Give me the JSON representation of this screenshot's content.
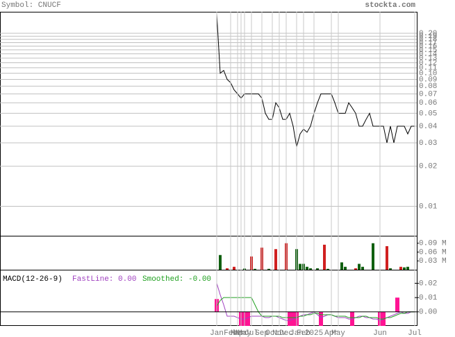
{
  "header": {
    "symbol": "Symbol: CNUCF",
    "site": "stockta.com"
  },
  "chart_data": [
    {
      "type": "line",
      "log_scale": true,
      "grid": true,
      "color": "#000000",
      "categories": [
        "Jan",
        null,
        null,
        null,
        "Feb",
        null,
        "Mar",
        "Apr",
        "May",
        null,
        "Jul",
        null,
        null,
        "Sep",
        null,
        null,
        "Oct",
        null,
        "Nov",
        null,
        "Dec",
        null,
        null,
        "Jan",
        null,
        "Feb",
        null,
        null,
        "2025",
        null,
        null,
        null,
        null,
        "Apr",
        null,
        "May",
        null,
        null,
        null,
        null,
        null,
        null,
        null,
        null,
        null,
        null,
        null,
        "Jun",
        null,
        null,
        null,
        null,
        null,
        null,
        null,
        null,
        null,
        "Jul"
      ],
      "values": [
        0.28,
        0.1,
        0.105,
        0.09,
        0.085,
        0.075,
        0.07,
        0.065,
        0.07,
        0.07,
        0.07,
        0.07,
        0.07,
        0.065,
        0.05,
        0.045,
        0.045,
        0.06,
        0.055,
        0.045,
        0.045,
        0.05,
        0.04,
        0.028,
        0.035,
        0.038,
        0.036,
        0.04,
        0.05,
        0.06,
        0.07,
        0.07,
        0.07,
        0.07,
        0.06,
        0.05,
        0.05,
        0.05,
        0.06,
        0.055,
        0.05,
        0.04,
        0.04,
        0.045,
        0.05,
        0.04,
        0.04,
        0.04,
        0.04,
        0.03,
        0.04,
        0.03,
        0.04,
        0.04,
        0.04,
        0.035,
        0.04,
        0.04
      ],
      "ylim": [
        0.006,
        0.29
      ],
      "yticks": [
        0.01,
        0.02,
        0.03,
        0.04,
        0.05,
        0.06,
        0.07,
        0.08,
        0.09,
        {
          "value": 0.1,
          "label": "0.10"
        },
        0.11,
        0.12,
        0.13,
        0.14,
        0.15,
        0.16,
        0.17,
        0.18,
        0.19,
        {
          "value": 0.2,
          "label": "0.20"
        }
      ]
    },
    {
      "type": "bar",
      "values": [
        0,
        0.05,
        0,
        0.005,
        0,
        0.01,
        0,
        0,
        0.004,
        0,
        0.045,
        0.003,
        0,
        0.075,
        0,
        0.003,
        0,
        0.07,
        0,
        0,
        0.09,
        0,
        0,
        0.07,
        0.02,
        0.02,
        0.01,
        0.005,
        0,
        0.005,
        0,
        0.085,
        0.003,
        0,
        0,
        0,
        0.025,
        0.01,
        0,
        0,
        0.005,
        0.02,
        0.01,
        0,
        0,
        0.09,
        0,
        0,
        0,
        0.08,
        0.005,
        0,
        0,
        0.01,
        0.008,
        0.01,
        0,
        0
      ],
      "colors": [
        "#106010",
        "#106010",
        "#106010",
        "#d02020",
        "#106010",
        "#d02020",
        "#106010",
        "#106010",
        "#106010",
        "#106010",
        "#d02020",
        "#106010",
        "#106010",
        "#d02020",
        "#106010",
        "#106010",
        "#106010",
        "#d02020",
        "#106010",
        "#106010",
        "#d02020",
        "#106010",
        "#106010",
        "#106010",
        "#106010",
        "#106010",
        "#106010",
        "#106010",
        "#106010",
        "#106010",
        "#106010",
        "#d02020",
        "#106010",
        "#106010",
        "#106010",
        "#106010",
        "#106010",
        "#106010",
        "#106010",
        "#106010",
        "#d02020",
        "#106010",
        "#106010",
        "#106010",
        "#106010",
        "#106010",
        "#106010",
        "#106010",
        "#106010",
        "#d02020",
        "#106010",
        "#106010",
        "#106010",
        "#d02020",
        "#106010",
        "#106010",
        "#106010",
        "#106010"
      ],
      "ylim": [
        0,
        0.113
      ],
      "yticks": [
        {
          "value": 0.03,
          "label": "0.03 M"
        },
        {
          "value": 0.06,
          "label": "0.06 M"
        },
        {
          "value": 0.09,
          "label": "0.09 M"
        }
      ]
    },
    {
      "type": "macd",
      "title": "MACD(12-26-9)",
      "series": [
        {
          "name": "FastLine: 0.00",
          "color": "#a040c0",
          "values": [
            0.02,
            0.012,
            0.005,
            -0.003,
            -0.003,
            -0.003,
            -0.004,
            -0.005,
            -0.005,
            -0.004,
            -0.003,
            -0.003,
            -0.003,
            -0.003,
            -0.004,
            -0.004,
            -0.003,
            -0.003,
            -0.004,
            -0.005,
            -0.006,
            -0.006,
            -0.005,
            -0.004,
            -0.003,
            -0.002,
            -0.002,
            -0.001,
            0.0,
            -0.002,
            -0.004,
            -0.003,
            -0.002,
            -0.002,
            -0.003,
            -0.004,
            -0.004,
            -0.004,
            -0.005,
            -0.005,
            -0.004,
            -0.003,
            -0.003,
            -0.004,
            -0.004,
            -0.005,
            -0.005,
            -0.006,
            -0.005,
            -0.004,
            -0.003,
            -0.002,
            -0.001,
            0.0,
            -0.001,
            -0.001,
            0.0,
            0.0
          ]
        },
        {
          "name": "Smoothed: -0.00",
          "color": "#20a020",
          "values": [
            0.004,
            0.008,
            0.01,
            0.01,
            0.01,
            0.01,
            0.01,
            0.01,
            0.01,
            0.01,
            0.01,
            0.005,
            0.0,
            -0.003,
            -0.003,
            -0.003,
            -0.003,
            -0.003,
            -0.003,
            -0.004,
            -0.004,
            -0.004,
            -0.004,
            -0.004,
            -0.003,
            -0.003,
            -0.002,
            -0.002,
            -0.001,
            -0.001,
            -0.002,
            -0.002,
            -0.002,
            -0.002,
            -0.003,
            -0.003,
            -0.003,
            -0.003,
            -0.004,
            -0.004,
            -0.004,
            -0.004,
            -0.003,
            -0.003,
            -0.004,
            -0.004,
            -0.004,
            -0.005,
            -0.005,
            -0.004,
            -0.004,
            -0.003,
            -0.002,
            -0.001,
            -0.001,
            0.0,
            0.0,
            0.0
          ]
        }
      ],
      "histogram": {
        "color": "#ff1493",
        "values": [
          0.009,
          0,
          0,
          0,
          0,
          0,
          0,
          -0.01,
          -0.01,
          -0.01,
          0,
          0,
          0,
          0,
          0,
          0,
          0,
          0,
          0,
          0,
          0,
          -0.01,
          -0.01,
          -0.01,
          0,
          0,
          0,
          0,
          0,
          0,
          -0.01,
          0,
          0,
          0,
          0,
          0,
          0,
          0,
          0,
          -0.01,
          0,
          0,
          0,
          0,
          0,
          0,
          0,
          -0.01,
          -0.01,
          0,
          0,
          0,
          0.01,
          0,
          0,
          0,
          0,
          0
        ]
      },
      "ylim": [
        -0.0098,
        0.029
      ],
      "yticks": [
        {
          "value": 0,
          "label": "0.00"
        },
        0.01,
        0.02
      ]
    }
  ]
}
